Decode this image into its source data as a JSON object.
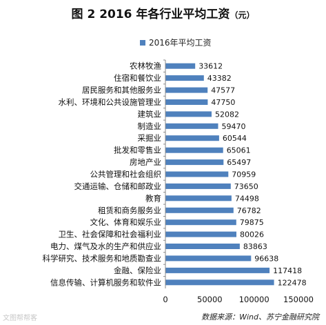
{
  "title": "图 2 2016 年各行业平均工资",
  "title_unit": "（元）",
  "source": "数据来源：Wind、苏宁金融研究院",
  "watermark": "文图帮帮客",
  "chart_data": {
    "type": "bar",
    "orientation": "horizontal",
    "legend": "2016年平均工资",
    "legend_position": "top",
    "xlim": [
      0,
      150000
    ],
    "xticks": [
      "0",
      "50000",
      "100000",
      "150000"
    ],
    "grid": false,
    "bar_color": "#4f81bd",
    "categories": [
      "农林牧渔",
      "住宿和餐饮业",
      "居民服务和其他服务业",
      "水利、环境和公共设施管理业",
      "建筑业",
      "制造业",
      "采掘业",
      "批发和零售业",
      "房地产业",
      "公共管理和社会组织",
      "交通运输、仓储和邮政业",
      "教育",
      "租赁和商务服务业",
      "文化、体育和娱乐业",
      "卫生、社会保障和社会福利业",
      "电力、煤气及水的生产和供应业",
      "科学研究、技术服务和地质勘查业",
      "金融、保险业",
      "信息传输、计算机服务和软件业"
    ],
    "values": [
      33612,
      43382,
      47577,
      47750,
      52082,
      59470,
      60544,
      65061,
      65497,
      70959,
      73650,
      74498,
      76782,
      79875,
      80026,
      83863,
      96638,
      117418,
      122478
    ]
  }
}
